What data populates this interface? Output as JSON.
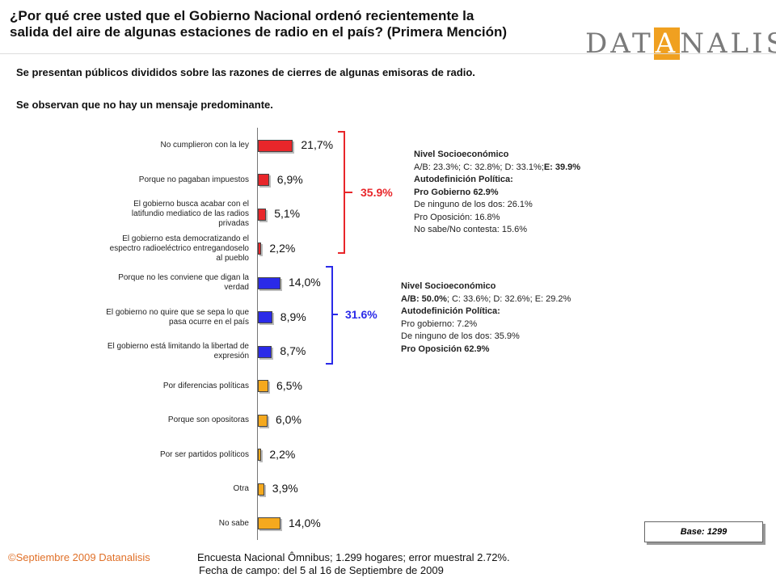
{
  "header": {
    "title_lines": [
      "¿Por qué cree usted que el Gobierno Nacional ordenó recientemente la",
      "salida del aire de algunas estaciones de radio en el país? (Primera Mención)"
    ],
    "logo": [
      "DAT",
      "A",
      "NALISIS"
    ]
  },
  "subtitles": [
    "Se presentan públicos divididos sobre las razones de cierres de algunas emisoras de radio.",
    "Se observan que no hay un mensaje predominante."
  ],
  "chart_data": {
    "type": "bar",
    "orientation": "horizontal",
    "categories": [
      "No cumplieron con la ley",
      "Porque no pagaban impuestos",
      "El gobierno busca acabar con el latifundio mediatico de las radios privadas",
      "El gobierno esta democratizando el espectro radioeléctrico entregandoselo al pueblo",
      "Porque no les conviene que digan la verdad",
      "El gobierno no quire que se sepa lo que pasa ocurre en el país",
      "El gobierno está limitando la libertad de expresión",
      "Por diferencias políticas",
      "Porque son opositoras",
      "Por ser partidos políticos",
      "Otra",
      "No sabe"
    ],
    "values": [
      21.7,
      6.9,
      5.1,
      2.2,
      14.0,
      8.9,
      8.7,
      6.5,
      6.0,
      2.2,
      3.9,
      14.0
    ],
    "value_labels": [
      "21,7%",
      "6,9%",
      "5,1%",
      "2,2%",
      "14,0%",
      "8,9%",
      "8,7%",
      "6,5%",
      "6,0%",
      "2,2%",
      "3,9%",
      "14,0%"
    ],
    "colors": [
      "#e8262a",
      "#e8262a",
      "#e8262a",
      "#e8262a",
      "#2a2ae8",
      "#2a2ae8",
      "#2a2ae8",
      "#f5a91e",
      "#f5a91e",
      "#f5a91e",
      "#f5a91e",
      "#f5a91e"
    ],
    "groups": [
      {
        "label": "35.9%",
        "color": "#e8262a"
      },
      {
        "label": "31.6%",
        "color": "#2a2ae8"
      }
    ]
  },
  "notes": [
    [
      [
        {
          "text": "Nivel Socioeconómico",
          "bold": true
        }
      ],
      [
        {
          "text": "A/B: 23.3%; C: 32.8%; D: 33.1%;",
          "bold": false
        },
        {
          "text": "E: 39.9%",
          "bold": true
        }
      ],
      [
        {
          "text": "Autodefinición Política:",
          "bold": true
        }
      ],
      [
        {
          "text": "Pro Gobierno 62.9%",
          "bold": true
        }
      ],
      [
        {
          "text": "De ninguno de los dos: 26.1%",
          "bold": false
        }
      ],
      [
        {
          "text": "Pro Oposición: 16.8%",
          "bold": false
        }
      ],
      [
        {
          "text": "No sabe/No contesta: 15.6%",
          "bold": false
        }
      ]
    ],
    [
      [
        {
          "text": "Nivel Socioeconómico",
          "bold": true
        }
      ],
      [
        {
          "text": "A/B: 50.0%",
          "bold": true
        },
        {
          "text": "; C: 33.6%; D: 32.6%; E: 29.2%",
          "bold": false
        }
      ],
      [
        {
          "text": "Autodefinición Política:",
          "bold": true
        }
      ],
      [
        {
          "text": "Pro gobierno: 7.2%",
          "bold": false
        }
      ],
      [
        {
          "text": "De ninguno de los dos: 35.9%",
          "bold": false
        }
      ],
      [
        {
          "text": "Pro Oposición 62.9%",
          "bold": true
        }
      ]
    ]
  ],
  "base": "Base:  1299",
  "footer": {
    "copyright": "©Septiembre 2009  Datanalisis",
    "survey": "Encuesta Nacional Ômnibus; 1.299 hogares; error muestral 2.72%.",
    "dates": "Fecha de campo: del 5 al 16 de Septiembre de 2009"
  }
}
